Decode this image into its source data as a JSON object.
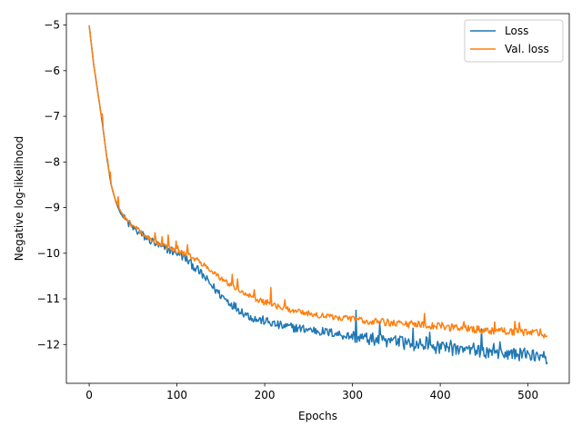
{
  "chart_data": {
    "type": "line",
    "title": "",
    "xlabel": "Epochs",
    "ylabel": "Negative log-likelihood",
    "xlim": [
      -26,
      547
    ],
    "ylim": [
      -12.85,
      -4.75
    ],
    "xticks": [
      0,
      100,
      200,
      300,
      400,
      500
    ],
    "xtick_labels": [
      "0",
      "100",
      "200",
      "300",
      "400",
      "500"
    ],
    "yticks": [
      -5,
      -6,
      -7,
      -8,
      -9,
      -10,
      -11,
      -12
    ],
    "ytick_labels": [
      "−5",
      "−6",
      "−7",
      "−8",
      "−9",
      "−10",
      "−11",
      "−12"
    ],
    "grid": false,
    "legend_position": "top-right",
    "n_epochs": 522,
    "series": [
      {
        "name": "Loss",
        "color": "#1f77b4",
        "x": [
          0,
          5,
          10,
          15,
          20,
          25,
          30,
          35,
          40,
          50,
          60,
          70,
          80,
          90,
          100,
          110,
          120,
          130,
          140,
          150,
          160,
          170,
          180,
          190,
          200,
          210,
          220,
          230,
          240,
          250,
          260,
          270,
          280,
          290,
          300,
          310,
          320,
          330,
          340,
          350,
          360,
          370,
          380,
          390,
          400,
          410,
          420,
          430,
          440,
          450,
          460,
          470,
          480,
          490,
          500,
          510,
          520
        ],
        "values": [
          -5.0,
          -5.85,
          -6.5,
          -7.15,
          -7.9,
          -8.5,
          -8.85,
          -9.1,
          -9.25,
          -9.45,
          -9.6,
          -9.72,
          -9.85,
          -9.92,
          -9.98,
          -10.12,
          -10.3,
          -10.5,
          -10.72,
          -10.92,
          -11.08,
          -11.22,
          -11.35,
          -11.45,
          -11.48,
          -11.55,
          -11.6,
          -11.62,
          -11.65,
          -11.67,
          -11.7,
          -11.73,
          -11.75,
          -11.8,
          -11.82,
          -11.85,
          -11.88,
          -11.9,
          -11.92,
          -11.94,
          -11.97,
          -12.0,
          -12.02,
          -12.05,
          -12.08,
          -12.1,
          -12.12,
          -12.14,
          -12.15,
          -12.17,
          -12.18,
          -12.2,
          -12.2,
          -12.22,
          -12.23,
          -12.24,
          -12.3
        ],
        "noise": 0.1
      },
      {
        "name": "Val. loss",
        "color": "#ff7f0e",
        "x": [
          0,
          5,
          10,
          15,
          20,
          25,
          30,
          35,
          40,
          50,
          60,
          70,
          80,
          90,
          100,
          110,
          120,
          130,
          140,
          150,
          160,
          170,
          180,
          190,
          200,
          210,
          220,
          230,
          240,
          250,
          260,
          270,
          280,
          290,
          300,
          310,
          320,
          330,
          340,
          350,
          360,
          370,
          380,
          390,
          400,
          410,
          420,
          430,
          440,
          450,
          460,
          470,
          480,
          490,
          500,
          510,
          520
        ],
        "values": [
          -5.0,
          -5.85,
          -6.5,
          -7.15,
          -7.9,
          -8.5,
          -8.85,
          -9.05,
          -9.2,
          -9.4,
          -9.55,
          -9.68,
          -9.8,
          -9.88,
          -9.95,
          -10.03,
          -10.12,
          -10.25,
          -10.38,
          -10.55,
          -10.68,
          -10.8,
          -10.9,
          -11.0,
          -11.08,
          -11.15,
          -11.2,
          -11.25,
          -11.28,
          -11.32,
          -11.36,
          -11.38,
          -11.4,
          -11.42,
          -11.44,
          -11.46,
          -11.48,
          -11.5,
          -11.52,
          -11.53,
          -11.55,
          -11.56,
          -11.58,
          -11.6,
          -11.62,
          -11.63,
          -11.64,
          -11.66,
          -11.67,
          -11.68,
          -11.7,
          -11.71,
          -11.72,
          -11.73,
          -11.74,
          -11.75,
          -11.78
        ],
        "noise": 0.06
      }
    ]
  }
}
